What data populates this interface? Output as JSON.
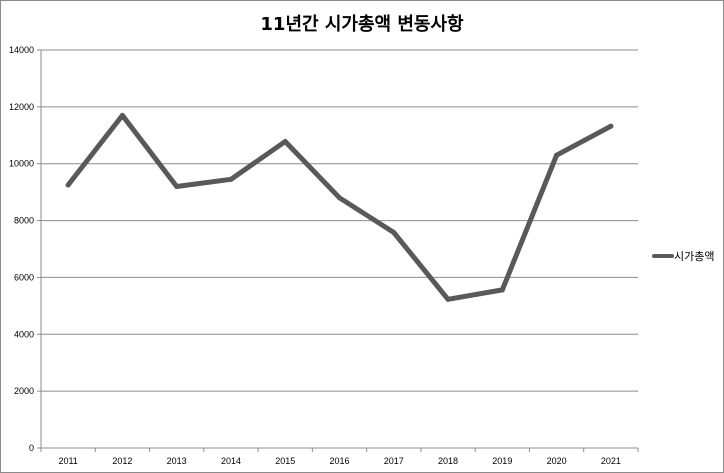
{
  "chart_data": {
    "type": "line",
    "title": "11년간 시가총액 변동사항",
    "categories": [
      "2011",
      "2012",
      "2013",
      "2014",
      "2015",
      "2016",
      "2017",
      "2018",
      "2019",
      "2020",
      "2021"
    ],
    "series": [
      {
        "name": "시가총액",
        "values": [
          9250,
          11700,
          9200,
          9450,
          10780,
          8800,
          7580,
          5230,
          5560,
          10300,
          11320
        ],
        "color": "#595959"
      }
    ],
    "ylim": [
      0,
      14000
    ],
    "yticks": [
      0,
      2000,
      4000,
      6000,
      8000,
      10000,
      12000,
      14000
    ],
    "grid": true,
    "legend_position": "right",
    "xlabel": "",
    "ylabel": ""
  }
}
